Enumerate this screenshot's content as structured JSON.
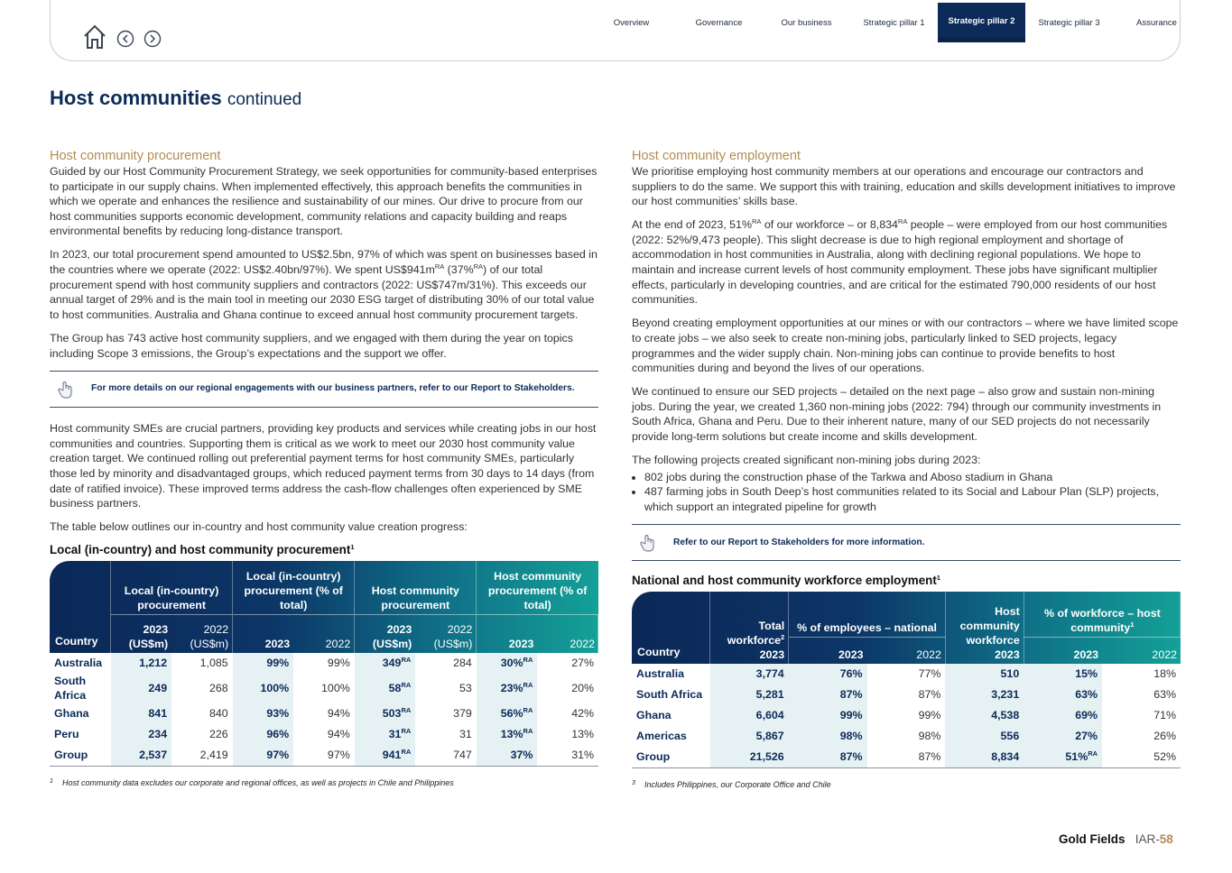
{
  "nav": {
    "tabs": [
      {
        "label": "Overview"
      },
      {
        "label": "Governance"
      },
      {
        "label": "Our business"
      },
      {
        "label": "Strategic pillar 1"
      },
      {
        "label": "Strategic pillar 2",
        "active": true
      },
      {
        "label": "Strategic pillar 3"
      },
      {
        "label": "Assurance"
      }
    ]
  },
  "title": {
    "main": "Host communities",
    "suffix": "continued"
  },
  "left": {
    "heading": "Host community procurement",
    "paragraphs": [
      "Guided by our Host Community Procurement Strategy, we seek opportunities for community-based enterprises to participate in our supply chains. When implemented effectively, this approach benefits the communities in which we operate and enhances the resilience and sustainability of our mines. Our drive to procure from our host communities supports economic development, community relations and capacity building and reaps environmental benefits by reducing long-distance transport.",
      [
        "In 2023, our total procurement spend amounted to US$2.5bn, 97% of which was spent on businesses based in the countries where we operate (2022: US$2.40bn/97%). We spent US$941m",
        {
          "sup": "RA"
        },
        " (37%",
        {
          "sup": "RA"
        },
        ") of our total procurement spend with host community suppliers and contractors (2022: US$747m/31%). This exceeds our annual target of 29% and is the main tool in meeting our 2030 ESG target of distributing 30% of our total value to host communities. Australia and Ghana continue to exceed annual host community procurement targets."
      ],
      "The Group has 743 active host community suppliers, and we engaged with them during the year on topics including Scope 3 emissions, the Group’s expectations and the support we offer."
    ],
    "callout": "For more details on our regional engagements with our business partners, refer to our Report to Stakeholders.",
    "paragraphs_after": [
      "Host community SMEs are crucial partners, providing key products and services while creating jobs in our host communities and countries. Supporting them is critical as we work to meet our 2030 host community value creation target. We continued rolling out preferential payment terms for host community SMEs, particularly those led by minority and disadvantaged groups, which reduced payment terms from 30 days to 14 days (from date of ratified invoice). These improved terms address the cash-flow challenges often experienced by SME business partners.",
      "The table below outlines our in-country and host community value creation progress:"
    ],
    "table": {
      "title": [
        "Local (in-country) and host community procurement",
        {
          "sup": "1"
        }
      ],
      "country_header": "Country",
      "groups": [
        {
          "label": "Local (in-country) procurement",
          "years": [
            {
              "year": "2023",
              "unit": "(US$m)"
            },
            {
              "year": "2022",
              "unit": "(US$m)"
            }
          ]
        },
        {
          "label": "Local (in-country) procurement (% of total)",
          "years": [
            {
              "year": "2023"
            },
            {
              "year": "2022"
            }
          ]
        },
        {
          "label": "Host community procurement",
          "years": [
            {
              "year": "2023",
              "unit": "(US$m)"
            },
            {
              "year": "2022",
              "unit": "(US$m)"
            }
          ]
        },
        {
          "label": "Host community procurement (% of total)",
          "years": [
            {
              "year": "2023"
            },
            {
              "year": "2022"
            }
          ]
        }
      ],
      "rows": [
        [
          "Australia",
          "1,212",
          "1,085",
          "99%",
          "99%",
          [
            "349",
            {
              "sup": "RA"
            }
          ],
          "284",
          [
            "30%",
            {
              "sup": "RA"
            }
          ],
          "27%"
        ],
        [
          "South Africa",
          "249",
          "268",
          "100%",
          "100%",
          [
            "58",
            {
              "sup": "RA"
            }
          ],
          "53",
          [
            "23%",
            {
              "sup": "RA"
            }
          ],
          "20%"
        ],
        [
          "Ghana",
          "841",
          "840",
          "93%",
          "94%",
          [
            "503",
            {
              "sup": "RA"
            }
          ],
          "379",
          [
            "56%",
            {
              "sup": "RA"
            }
          ],
          "42%"
        ],
        [
          "Peru",
          "234",
          "226",
          "96%",
          "94%",
          [
            "31",
            {
              "sup": "RA"
            }
          ],
          "31",
          [
            "13%",
            {
              "sup": "RA"
            }
          ],
          "13%"
        ],
        [
          "Group",
          "2,537",
          "2,419",
          "97%",
          "97%",
          [
            "941",
            {
              "sup": "RA"
            }
          ],
          "747",
          "37%",
          "31%"
        ]
      ],
      "footnote": {
        "mark": "1",
        "text": "Host community data excludes our corporate and regional offices, as well as projects in Chile and Philippines"
      }
    }
  },
  "right": {
    "heading": "Host community employment",
    "paragraphs": [
      "We prioritise employing host community members at our operations and encourage our contractors and suppliers to do the same. We support this with training, education and skills development initiatives to improve our host communities’ skills base.",
      [
        "At the end of 2023, 51%",
        {
          "sup": "RA"
        },
        " of our workforce – or 8,834",
        {
          "sup": "RA"
        },
        " people – were employed from our host communities (2022: 52%/9,473 people). This slight decrease is due to high regional employment and shortage of accommodation in host communities in Australia, along with declining regional populations. We hope to maintain and increase current levels of host community employment. These jobs have significant multiplier effects, particularly in developing countries, and are critical for the estimated 790,000 residents of our host communities."
      ],
      "Beyond creating employment opportunities at our mines or with our contractors – where we have limited scope to create jobs – we also seek to create non-mining jobs, particularly linked to SED projects, legacy programmes and the wider supply chain. Non-mining jobs can continue to provide benefits to host communities during and beyond the lives of our operations.",
      "We continued to ensure our SED projects – detailed on the next page – also grow and sustain non-mining jobs. During the year, we created 1,360 non-mining jobs (2022: 794) through our community investments in South Africa, Ghana and Peru. Due to their inherent nature, many of our SED projects do not necessarily provide long-term solutions but create income and skills development.",
      "The following projects created significant non-mining jobs during 2023:"
    ],
    "bullets": [
      "802 jobs during the construction phase of the Tarkwa and Aboso stadium in Ghana",
      "487 farming jobs in South Deep’s host communities related to its Social and Labour Plan (SLP) projects, which support an integrated pipeline for growth"
    ],
    "callout": "Refer to our Report to Stakeholders for more information.",
    "table": {
      "title": [
        "National and host community workforce employment",
        {
          "sup": "1"
        }
      ],
      "country_header": "Country",
      "groups": [
        {
          "label": [
            "Total workforce",
            {
              "sup": "2"
            }
          ],
          "years": [
            {
              "year": "2023"
            }
          ]
        },
        {
          "label": "% of employees – national",
          "years": [
            {
              "year": "2023"
            },
            {
              "year": "2022"
            }
          ]
        },
        {
          "label": "Host community workforce",
          "years": [
            {
              "year": "2023"
            }
          ]
        },
        {
          "label": [
            "% of workforce – host community",
            {
              "sup": "1"
            }
          ],
          "years": [
            {
              "year": "2023"
            },
            {
              "year": "2022"
            }
          ]
        }
      ],
      "rows": [
        [
          "Australia",
          "3,774",
          "76%",
          "77%",
          "510",
          "15%",
          "18%"
        ],
        [
          "South Africa",
          "5,281",
          "87%",
          "87%",
          "3,231",
          "63%",
          "63%"
        ],
        [
          "Ghana",
          "6,604",
          "99%",
          "99%",
          "4,538",
          "69%",
          "71%"
        ],
        [
          "Americas",
          "5,867",
          "98%",
          "98%",
          "556",
          "27%",
          "26%"
        ],
        [
          "Group",
          "21,526",
          "87%",
          "87%",
          "8,834",
          [
            "51%",
            {
              "sup": "RA"
            }
          ],
          "52%"
        ]
      ],
      "footnote": {
        "mark": "3",
        "text": "Includes Philippines, our Corporate Office and Chile"
      }
    }
  },
  "footer": {
    "company": "Gold Fields",
    "report": "IAR-",
    "page": "58"
  }
}
